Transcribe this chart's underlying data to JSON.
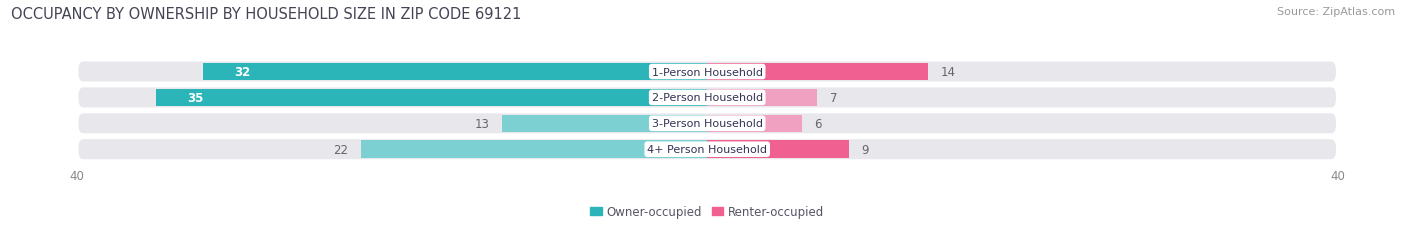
{
  "title": "OCCUPANCY BY OWNERSHIP BY HOUSEHOLD SIZE IN ZIP CODE 69121",
  "source": "Source: ZipAtlas.com",
  "categories": [
    "1-Person Household",
    "2-Person Household",
    "3-Person Household",
    "4+ Person Household"
  ],
  "owner_values": [
    32,
    35,
    13,
    22
  ],
  "renter_values": [
    14,
    7,
    6,
    9
  ],
  "owner_color_dark": "#2BB5B8",
  "owner_color_light": "#7DD0D2",
  "renter_color_dark": "#F06090",
  "renter_color_light": "#F0A0C0",
  "xlim_data": [
    -40,
    40
  ],
  "bar_height": 0.68,
  "bg_bar_height": 0.88,
  "background_color": "#ffffff",
  "bar_bg_color": "#e8e8ec",
  "title_fontsize": 10.5,
  "source_fontsize": 8,
  "value_fontsize": 8.5,
  "cat_fontsize": 8,
  "tick_fontsize": 8.5,
  "legend_fontsize": 8.5,
  "title_color": "#444455",
  "source_color": "#999999",
  "tick_color": "#888888",
  "value_color_light": "#666666",
  "cat_label_color": "#333355"
}
